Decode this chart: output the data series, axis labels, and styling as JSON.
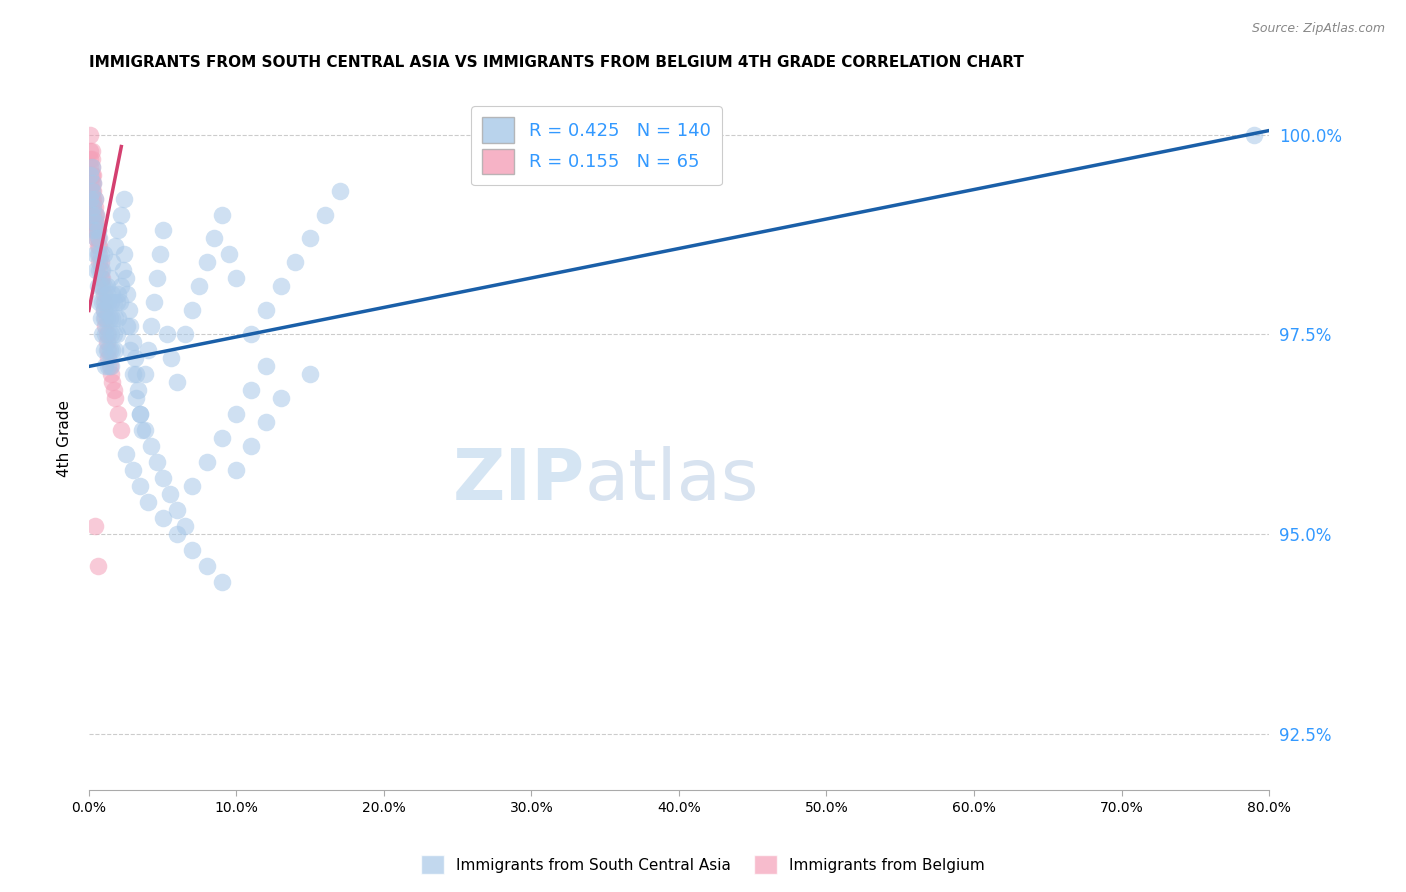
{
  "title": "IMMIGRANTS FROM SOUTH CENTRAL ASIA VS IMMIGRANTS FROM BELGIUM 4TH GRADE CORRELATION CHART",
  "source": "Source: ZipAtlas.com",
  "ylabel": "4th Grade",
  "yticks": [
    92.5,
    95.0,
    97.5,
    100.0
  ],
  "blue_R": 0.425,
  "blue_N": 140,
  "pink_R": 0.155,
  "pink_N": 65,
  "blue_color": "#a8c8e8",
  "pink_color": "#f4a0b8",
  "blue_line_color": "#1a5fa8",
  "pink_line_color": "#d44070",
  "legend_blue_label": "Immigrants from South Central Asia",
  "legend_pink_label": "Immigrants from Belgium",
  "watermark_zip": "ZIP",
  "watermark_atlas": "atlas",
  "xmin": 0.0,
  "xmax": 0.8,
  "ymin": 91.8,
  "ymax": 100.6,
  "blue_trend_x0": 0.0,
  "blue_trend_y0": 97.1,
  "blue_trend_x1": 0.8,
  "blue_trend_y1": 100.05,
  "pink_trend_x0": 0.0,
  "pink_trend_y0": 97.8,
  "pink_trend_x1": 0.022,
  "pink_trend_y1": 99.85,
  "blue_x": [
    0.001,
    0.001,
    0.002,
    0.002,
    0.002,
    0.003,
    0.003,
    0.003,
    0.004,
    0.004,
    0.004,
    0.005,
    0.005,
    0.005,
    0.006,
    0.006,
    0.006,
    0.007,
    0.007,
    0.007,
    0.008,
    0.008,
    0.008,
    0.009,
    0.009,
    0.009,
    0.01,
    0.01,
    0.01,
    0.01,
    0.011,
    0.011,
    0.011,
    0.012,
    0.012,
    0.012,
    0.013,
    0.013,
    0.013,
    0.014,
    0.014,
    0.015,
    0.015,
    0.015,
    0.016,
    0.016,
    0.016,
    0.017,
    0.017,
    0.018,
    0.018,
    0.019,
    0.019,
    0.02,
    0.02,
    0.021,
    0.022,
    0.023,
    0.024,
    0.025,
    0.026,
    0.027,
    0.028,
    0.03,
    0.031,
    0.032,
    0.033,
    0.035,
    0.036,
    0.038,
    0.04,
    0.042,
    0.044,
    0.046,
    0.048,
    0.05,
    0.053,
    0.056,
    0.06,
    0.065,
    0.07,
    0.075,
    0.08,
    0.085,
    0.09,
    0.095,
    0.1,
    0.11,
    0.12,
    0.13,
    0.14,
    0.15,
    0.16,
    0.17,
    0.01,
    0.012,
    0.014,
    0.016,
    0.018,
    0.02,
    0.022,
    0.024,
    0.026,
    0.028,
    0.03,
    0.032,
    0.035,
    0.038,
    0.042,
    0.046,
    0.05,
    0.055,
    0.06,
    0.065,
    0.07,
    0.08,
    0.09,
    0.1,
    0.11,
    0.12,
    0.025,
    0.03,
    0.035,
    0.04,
    0.05,
    0.06,
    0.07,
    0.08,
    0.09,
    0.1,
    0.11,
    0.12,
    0.13,
    0.15,
    0.79
  ],
  "blue_y": [
    99.2,
    99.5,
    99.0,
    99.3,
    99.6,
    98.8,
    99.1,
    99.4,
    98.5,
    98.9,
    99.2,
    98.3,
    98.7,
    99.0,
    98.1,
    98.5,
    98.8,
    97.9,
    98.3,
    98.7,
    97.7,
    98.1,
    98.5,
    97.5,
    97.9,
    98.3,
    97.3,
    97.7,
    98.1,
    98.5,
    97.1,
    97.5,
    97.9,
    97.3,
    97.7,
    98.1,
    97.1,
    97.5,
    97.9,
    97.3,
    97.7,
    97.1,
    97.5,
    97.9,
    97.3,
    97.7,
    98.0,
    97.5,
    97.9,
    97.3,
    97.7,
    97.5,
    97.9,
    97.7,
    98.0,
    97.9,
    98.1,
    98.3,
    98.5,
    98.2,
    98.0,
    97.8,
    97.6,
    97.4,
    97.2,
    97.0,
    96.8,
    96.5,
    96.3,
    97.0,
    97.3,
    97.6,
    97.9,
    98.2,
    98.5,
    98.8,
    97.5,
    97.2,
    96.9,
    97.5,
    97.8,
    98.1,
    98.4,
    98.7,
    99.0,
    98.5,
    98.2,
    97.5,
    97.8,
    98.1,
    98.4,
    98.7,
    99.0,
    99.3,
    97.8,
    98.0,
    98.2,
    98.4,
    98.6,
    98.8,
    99.0,
    99.2,
    97.6,
    97.3,
    97.0,
    96.7,
    96.5,
    96.3,
    96.1,
    95.9,
    95.7,
    95.5,
    95.3,
    95.1,
    95.6,
    95.9,
    96.2,
    96.5,
    96.8,
    97.1,
    96.0,
    95.8,
    95.6,
    95.4,
    95.2,
    95.0,
    94.8,
    94.6,
    94.4,
    95.8,
    96.1,
    96.4,
    96.7,
    97.0,
    100.0
  ],
  "pink_x": [
    0.001,
    0.001,
    0.001,
    0.001,
    0.001,
    0.001,
    0.001,
    0.001,
    0.001,
    0.001,
    0.002,
    0.002,
    0.002,
    0.002,
    0.002,
    0.002,
    0.002,
    0.002,
    0.002,
    0.002,
    0.003,
    0.003,
    0.003,
    0.003,
    0.003,
    0.003,
    0.003,
    0.004,
    0.004,
    0.004,
    0.004,
    0.004,
    0.005,
    0.005,
    0.005,
    0.005,
    0.006,
    0.006,
    0.006,
    0.007,
    0.007,
    0.007,
    0.008,
    0.008,
    0.008,
    0.009,
    0.009,
    0.01,
    0.01,
    0.01,
    0.011,
    0.011,
    0.012,
    0.012,
    0.013,
    0.013,
    0.014,
    0.015,
    0.016,
    0.017,
    0.018,
    0.02,
    0.022,
    0.004,
    0.006
  ],
  "pink_y": [
    100.0,
    99.8,
    99.7,
    99.6,
    99.5,
    99.4,
    99.3,
    99.2,
    99.1,
    99.0,
    99.8,
    99.7,
    99.6,
    99.5,
    99.4,
    99.3,
    99.2,
    99.1,
    99.0,
    98.9,
    99.5,
    99.4,
    99.3,
    99.2,
    99.1,
    99.0,
    98.9,
    99.2,
    99.1,
    99.0,
    98.9,
    98.8,
    99.0,
    98.9,
    98.8,
    98.7,
    98.8,
    98.7,
    98.6,
    98.6,
    98.5,
    98.4,
    98.4,
    98.3,
    98.2,
    98.2,
    98.1,
    98.0,
    97.9,
    97.8,
    97.7,
    97.6,
    97.5,
    97.4,
    97.3,
    97.2,
    97.1,
    97.0,
    96.9,
    96.8,
    96.7,
    96.5,
    96.3,
    95.1,
    94.6
  ]
}
